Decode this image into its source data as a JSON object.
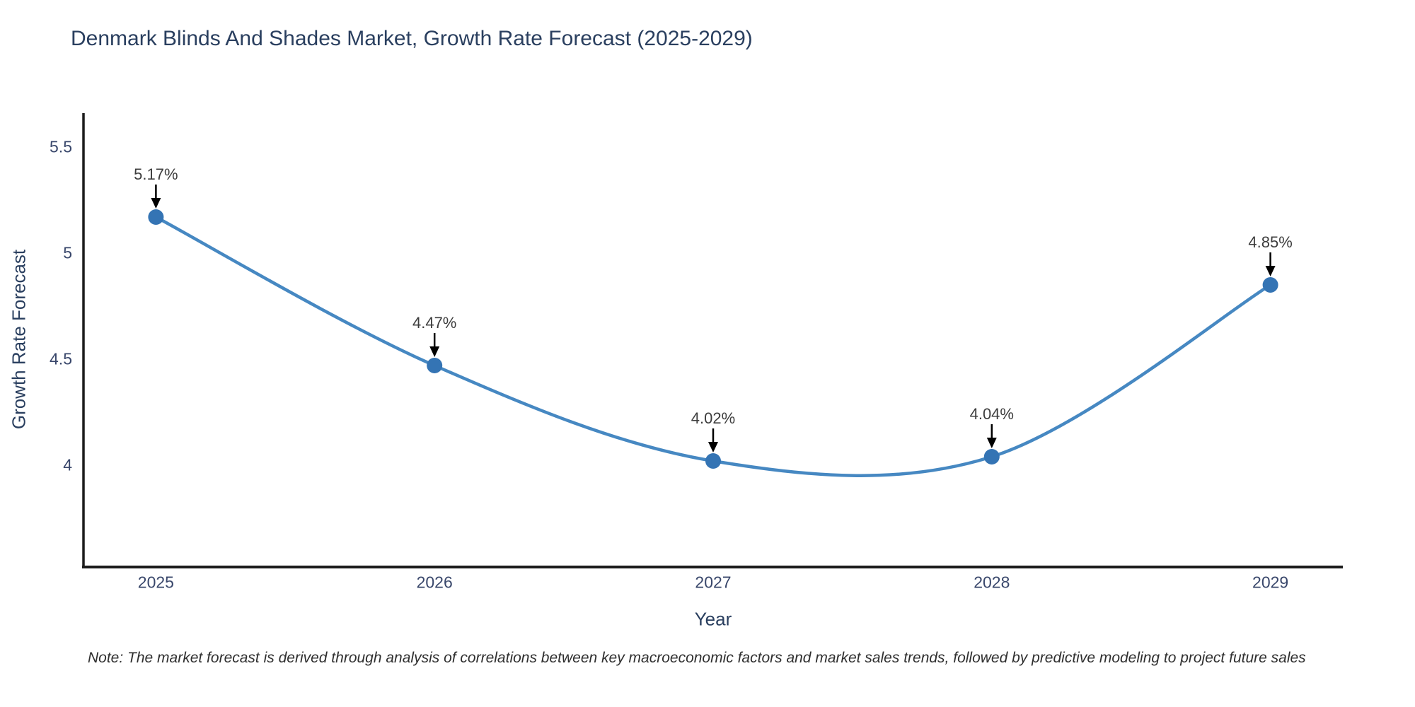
{
  "chart_data": {
    "type": "line",
    "title": "Denmark Blinds And Shades Market, Growth Rate Forecast (2025-2029)",
    "xlabel": "Year",
    "ylabel": "Growth Rate Forecast",
    "x": [
      2025,
      2026,
      2027,
      2028,
      2029
    ],
    "series": [
      {
        "name": "Growth Rate Forecast",
        "values": [
          5.17,
          4.47,
          4.02,
          4.04,
          4.85
        ]
      }
    ],
    "point_labels": [
      "5.17%",
      "4.47%",
      "4.02%",
      "4.04%",
      "4.85%"
    ],
    "xtick_labels": [
      "2025",
      "2026",
      "2027",
      "2028",
      "2029"
    ],
    "ytick_values": [
      4,
      4.5,
      5,
      5.5
    ],
    "ytick_labels": [
      "4",
      "4.5",
      "5",
      "5.5"
    ],
    "xlim": [
      2024.74,
      2029.26
    ],
    "ylim": [
      3.52,
      5.66
    ],
    "grid": false,
    "legend": false,
    "line_shape": "spline",
    "colors": {
      "line": "#4688c2",
      "marker": "#3474b4",
      "arrow": "#000000",
      "axis": "#1c1c1c",
      "title_text": "#2a3f5f",
      "tick_text": "#39476b",
      "annotation_text": "#3d3d3d"
    }
  },
  "note": "Note: The market forecast is derived through analysis of correlations between key macroeconomic factors and market sales trends, followed by predictive modeling to project future sales"
}
